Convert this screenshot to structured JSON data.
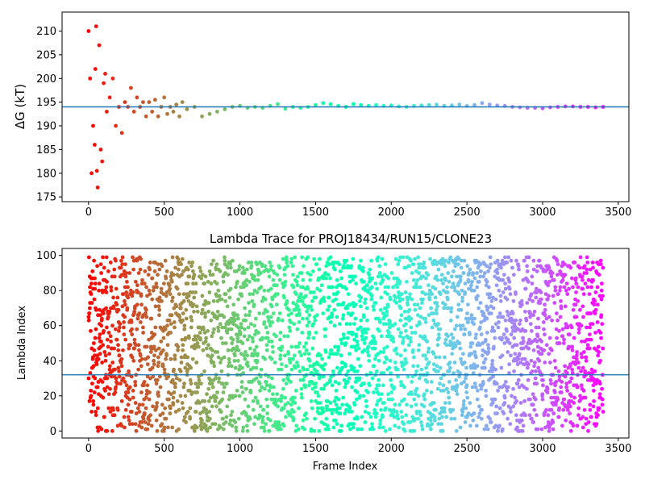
{
  "chart_data": [
    {
      "type": "scatter",
      "title": "",
      "xlabel": "",
      "ylabel": "ΔG (kT)",
      "xlim": [
        -175,
        3570
      ],
      "ylim": [
        174,
        214
      ],
      "xticks": [
        0,
        500,
        1000,
        1500,
        2000,
        2500,
        3000,
        3500
      ],
      "yticks": [
        175,
        180,
        185,
        190,
        195,
        200,
        205,
        210
      ],
      "hline": 194,
      "hline_color": "#1f77b4",
      "colormap": "rainbow (violet at frame 3400 to red at frame 0)",
      "series": [
        {
          "x": [
            0,
            10,
            20,
            30,
            40,
            45,
            50,
            55,
            60,
            70,
            80,
            90,
            100,
            110,
            120,
            140,
            160,
            180,
            200,
            220,
            240,
            260,
            280,
            300,
            320,
            340,
            360,
            380,
            400,
            420,
            440,
            460,
            480,
            500,
            520,
            540,
            560,
            580,
            600,
            620,
            650,
            700,
            750,
            800,
            850,
            900,
            950,
            1000,
            1050,
            1100,
            1150,
            1200,
            1250,
            1300,
            1350,
            1400,
            1450,
            1500,
            1550,
            1600,
            1650,
            1700,
            1750,
            1800,
            1850,
            1900,
            1950,
            2000,
            2050,
            2100,
            2150,
            2200,
            2250,
            2300,
            2350,
            2400,
            2450,
            2500,
            2550,
            2600,
            2650,
            2700,
            2750,
            2800,
            2850,
            2900,
            2950,
            3000,
            3050,
            3100,
            3150,
            3200,
            3250,
            3300,
            3350,
            3400
          ],
          "y": [
            210,
            200,
            180,
            190,
            186,
            202,
            211,
            180.5,
            177,
            207,
            185,
            182.5,
            199,
            201,
            193,
            196,
            200,
            190,
            194,
            188.5,
            195,
            194,
            198,
            193,
            196,
            194,
            195,
            192,
            195,
            193,
            195.5,
            192,
            194,
            196,
            192.5,
            194,
            193,
            194.5,
            192,
            195,
            193.5,
            194,
            192,
            192.5,
            193,
            193.5,
            194,
            194.2,
            193.8,
            194,
            193.8,
            194.2,
            194.6,
            193.6,
            194,
            193.8,
            194,
            194.4,
            194.8,
            194.6,
            194.2,
            194,
            194.6,
            194.4,
            194.2,
            194.4,
            194.2,
            194.3,
            194.1,
            194,
            194.2,
            194.3,
            194.4,
            194.5,
            194.2,
            194.3,
            194.5,
            194.2,
            194.4,
            194.8,
            194.5,
            194.3,
            194.2,
            194,
            193.9,
            193.8,
            193.8,
            193.7,
            193.9,
            194,
            194.1,
            194.1,
            194,
            194,
            193.9,
            194
          ]
        }
      ]
    },
    {
      "type": "scatter",
      "title": "Lambda Trace for PROJ18434/RUN15/CLONE23",
      "xlabel": "Frame Index",
      "ylabel": "Lambda Index",
      "xlim": [
        -175,
        3570
      ],
      "ylim": [
        -4,
        104
      ],
      "xticks": [
        0,
        500,
        1000,
        1500,
        2000,
        2500,
        3000,
        3500
      ],
      "yticks": [
        0,
        20,
        40,
        60,
        80,
        100
      ],
      "hline": 32,
      "hline_color": "#1f77b4",
      "colormap": "rainbow (violet at frame 3400 to red at frame 0)",
      "frames": [
        0,
        3400
      ],
      "point_count": 3400,
      "lambda_range": [
        0,
        99
      ]
    }
  ]
}
